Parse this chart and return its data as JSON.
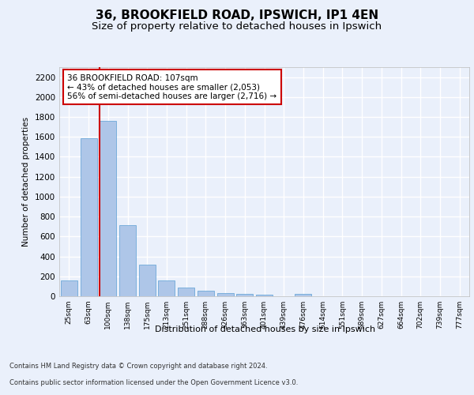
{
  "title1": "36, BROOKFIELD ROAD, IPSWICH, IP1 4EN",
  "title2": "Size of property relative to detached houses in Ipswich",
  "xlabel": "Distribution of detached houses by size in Ipswich",
  "ylabel": "Number of detached properties",
  "categories": [
    "25sqm",
    "63sqm",
    "100sqm",
    "138sqm",
    "175sqm",
    "213sqm",
    "251sqm",
    "288sqm",
    "326sqm",
    "363sqm",
    "401sqm",
    "439sqm",
    "476sqm",
    "514sqm",
    "551sqm",
    "589sqm",
    "627sqm",
    "664sqm",
    "702sqm",
    "739sqm",
    "777sqm"
  ],
  "values": [
    160,
    1590,
    1760,
    710,
    315,
    160,
    90,
    55,
    35,
    25,
    15,
    0,
    20,
    0,
    0,
    0,
    0,
    0,
    0,
    0,
    0
  ],
  "bar_color": "#aec6e8",
  "bar_edgecolor": "#5a9fd4",
  "property_bin_index": 2,
  "annotation_text": "36 BROOKFIELD ROAD: 107sqm\n← 43% of detached houses are smaller (2,053)\n56% of semi-detached houses are larger (2,716) →",
  "annotation_box_color": "#ffffff",
  "annotation_box_edgecolor": "#cc0000",
  "vline_color": "#cc0000",
  "ylim": [
    0,
    2300
  ],
  "yticks": [
    0,
    200,
    400,
    600,
    800,
    1000,
    1200,
    1400,
    1600,
    1800,
    2000,
    2200
  ],
  "footer1": "Contains HM Land Registry data © Crown copyright and database right 2024.",
  "footer2": "Contains public sector information licensed under the Open Government Licence v3.0.",
  "bg_color": "#eaf0fb",
  "plot_bg_color": "#eaf0fb",
  "grid_color": "#ffffff",
  "title1_fontsize": 11,
  "title2_fontsize": 9.5
}
